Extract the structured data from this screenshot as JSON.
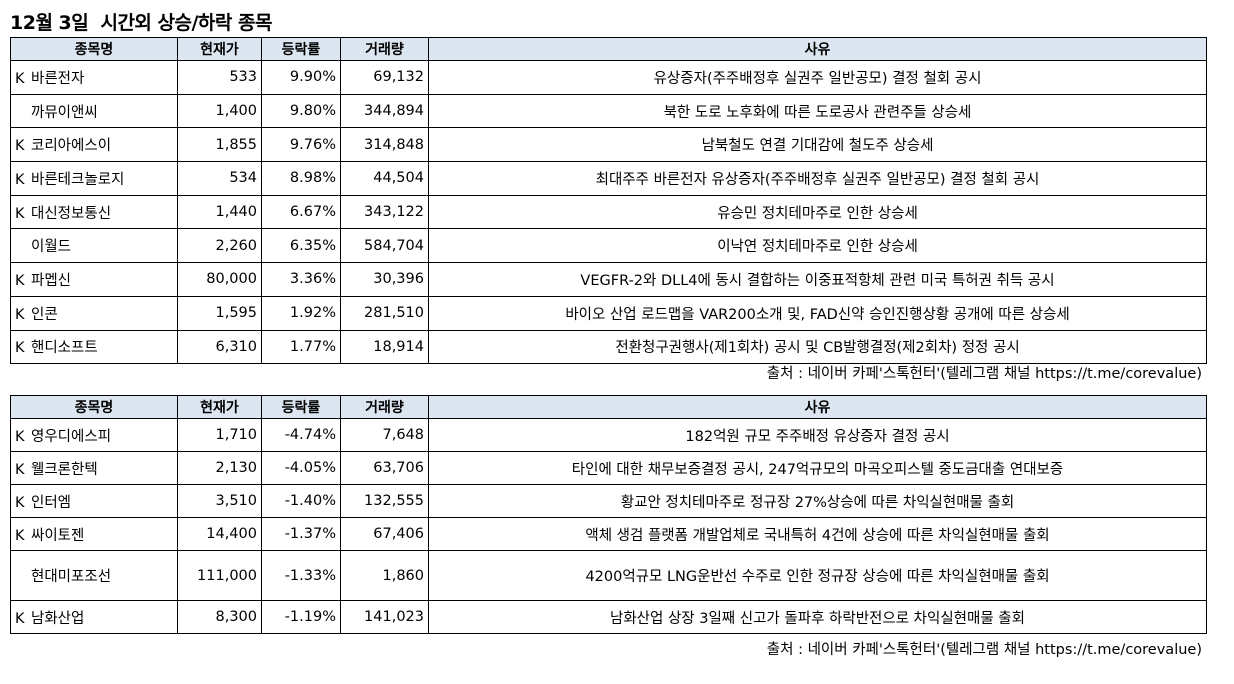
{
  "title": "12월 3일  시간외 상승/하락 종목",
  "headers": {
    "name": "종목명",
    "price": "현재가",
    "change": "등락률",
    "volume": "거래량",
    "reason": "사유"
  },
  "source_text": "출처 : 네이버 카페'스톡헌터'(텔레그램 채널 https://t.me/corevalue)",
  "rising": [
    {
      "mark": "K",
      "name": "바른전자",
      "price": "533",
      "change": "9.90%",
      "volume": "69,132",
      "reason": "유상증자(주주배정후 실권주 일반공모) 결정 철회 공시"
    },
    {
      "mark": "",
      "name": "까뮤이앤씨",
      "price": "1,400",
      "change": "9.80%",
      "volume": "344,894",
      "reason": "북한 도로 노후화에 따른 도로공사 관련주들 상승세"
    },
    {
      "mark": "K",
      "name": "코리아에스이",
      "price": "1,855",
      "change": "9.76%",
      "volume": "314,848",
      "reason": "남북철도 연결 기대감에 철도주 상승세"
    },
    {
      "mark": "K",
      "name": "바른테크놀로지",
      "price": "534",
      "change": "8.98%",
      "volume": "44,504",
      "reason": "최대주주 바른전자 유상증자(주주배정후 실권주 일반공모) 결정 철회 공시"
    },
    {
      "mark": "K",
      "name": "대신정보통신",
      "price": "1,440",
      "change": "6.67%",
      "volume": "343,122",
      "reason": "유승민 정치테마주로 인한 상승세"
    },
    {
      "mark": "",
      "name": "이월드",
      "price": "2,260",
      "change": "6.35%",
      "volume": "584,704",
      "reason": "이낙연 정치테마주로 인한 상승세"
    },
    {
      "mark": "K",
      "name": "파멥신",
      "price": "80,000",
      "change": "3.36%",
      "volume": "30,396",
      "reason": "VEGFR-2와 DLL4에 동시 결합하는 이중표적항체 관련 미국 특허권 취득 공시"
    },
    {
      "mark": "K",
      "name": "인콘",
      "price": "1,595",
      "change": "1.92%",
      "volume": "281,510",
      "reason": "바이오 산업 로드맵을 VAR200소개 및, FAD신약 승인진행상황 공개에 따른 상승세"
    },
    {
      "mark": "K",
      "name": "핸디소프트",
      "price": "6,310",
      "change": "1.77%",
      "volume": "18,914",
      "reason": "전환청구권행사(제1회차) 공시 및 CB발행결정(제2회차) 정정 공시"
    }
  ],
  "falling": [
    {
      "mark": "K",
      "name": "영우디에스피",
      "price": "1,710",
      "change": "-4.74%",
      "volume": "7,648",
      "reason": "182억원 규모 주주배정 유상증자 결정 공시"
    },
    {
      "mark": "K",
      "name": "웰크론한텍",
      "price": "2,130",
      "change": "-4.05%",
      "volume": "63,706",
      "reason": "타인에 대한 채무보증결정 공시, 247억규모의 마곡오피스텔 중도금대출 연대보증"
    },
    {
      "mark": "K",
      "name": "인터엠",
      "price": "3,510",
      "change": "-1.40%",
      "volume": "132,555",
      "reason": "황교안 정치테마주로 정규장 27%상승에 따른 차익실현매물 출회"
    },
    {
      "mark": "K",
      "name": "싸이토젠",
      "price": "14,400",
      "change": "-1.37%",
      "volume": "67,406",
      "reason": "액체 생검 플랫폼 개발업체로 국내특허 4건에 상승에 따른 차익실현매물 출회"
    },
    {
      "mark": "",
      "name": "현대미포조선",
      "price": "111,000",
      "change": "-1.33%",
      "volume": "1,860",
      "reason": "4200억규모 LNG운반선 수주로 인한 정규장 상승에 따른 차익실현매물 출회"
    },
    {
      "mark": "K",
      "name": "남화산업",
      "price": "8,300",
      "change": "-1.19%",
      "volume": "141,023",
      "reason": "남화산업 상장 3일째 신고가 돌파후 하락반전으로 차익실현매물 출회"
    }
  ]
}
